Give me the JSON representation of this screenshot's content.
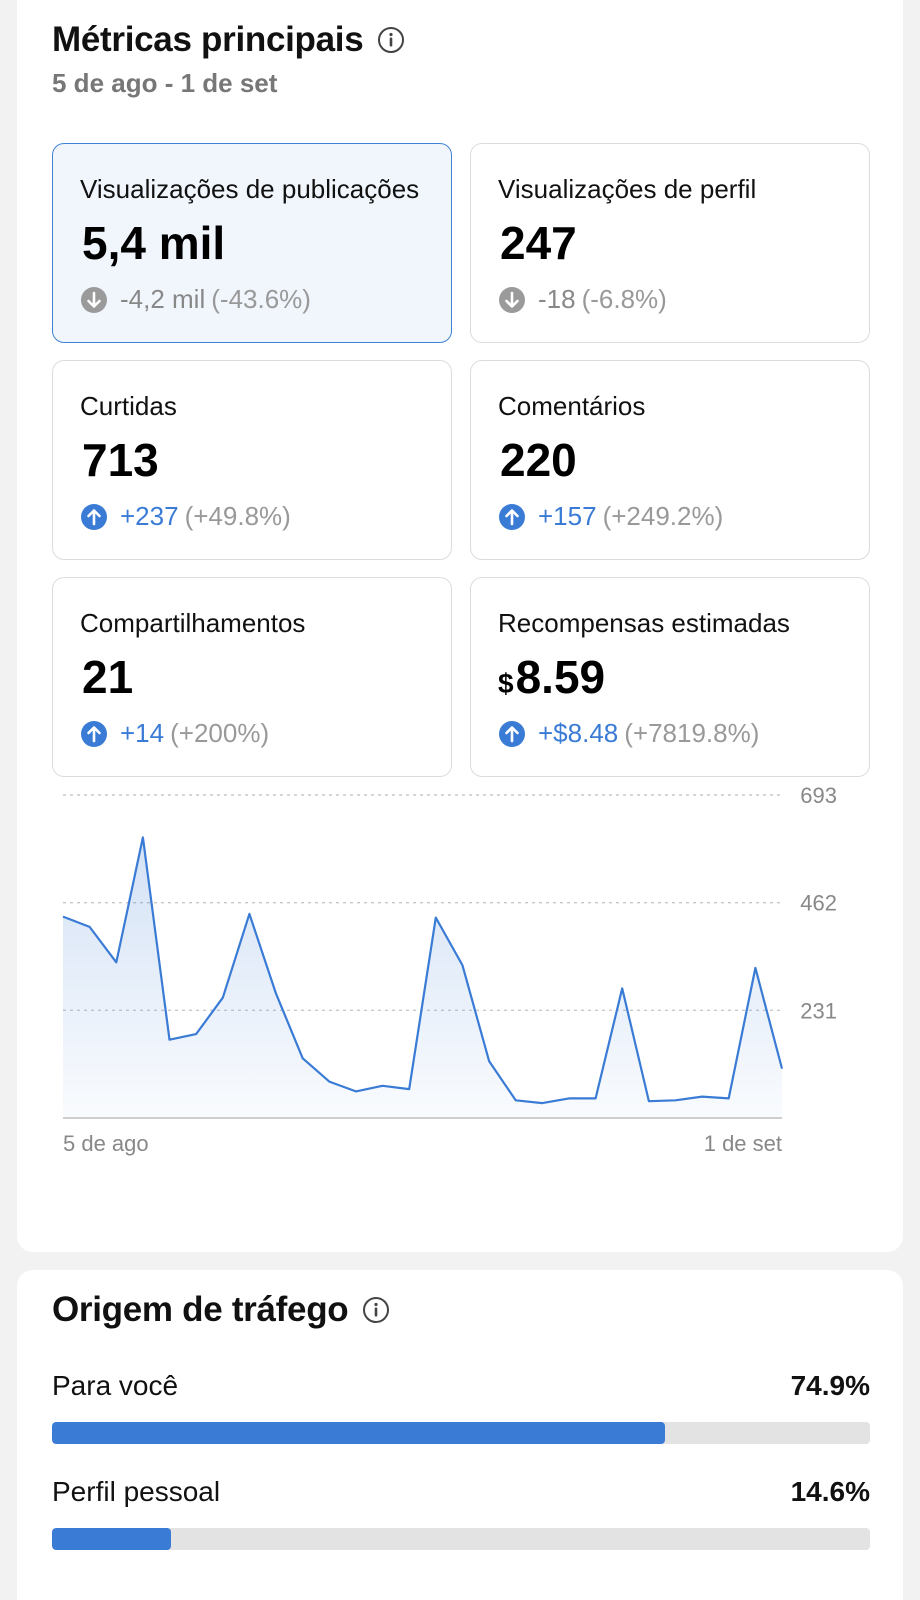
{
  "key_metrics": {
    "title": "Métricas principais",
    "date_range": "5 de ago - 1 de set",
    "cards": [
      {
        "label": "Visualizações de publicações",
        "value": "5,4 mil",
        "currency": "",
        "delta": "-4,2 mil",
        "pct": "(-43.6%)",
        "direction": "down",
        "selected": true
      },
      {
        "label": "Visualizações de perfil",
        "value": "247",
        "currency": "",
        "delta": "-18",
        "pct": "(-6.8%)",
        "direction": "down",
        "selected": false
      },
      {
        "label": "Curtidas",
        "value": "713",
        "currency": "",
        "delta": "+237",
        "pct": "(+49.8%)",
        "direction": "up",
        "selected": false
      },
      {
        "label": "Comentários",
        "value": "220",
        "currency": "",
        "delta": "+157",
        "pct": "(+249.2%)",
        "direction": "up",
        "selected": false
      },
      {
        "label": "Compartilhamentos",
        "value": "21",
        "currency": "",
        "delta": "+14",
        "pct": "(+200%)",
        "direction": "up",
        "selected": false
      },
      {
        "label": "Recompensas estimadas",
        "value": "8.59",
        "currency": "$",
        "delta": "+$8.48",
        "pct": "(+7819.8%)",
        "direction": "up",
        "selected": false
      }
    ]
  },
  "chart_data": {
    "type": "area",
    "x_start_label": "5 de ago",
    "x_end_label": "1 de set",
    "yticks": [
      231,
      462,
      693
    ],
    "ylim": [
      0,
      693
    ],
    "values": [
      432,
      410,
      334,
      602,
      168,
      180,
      258,
      438,
      267,
      128,
      78,
      57,
      69,
      62,
      430,
      328,
      122,
      38,
      32,
      42,
      42,
      278,
      36,
      38,
      46,
      42,
      322,
      106
    ],
    "colors": {
      "line": "#3a7bd5",
      "fill": "#3a7bd5",
      "grid": "#c9c9c9"
    }
  },
  "traffic": {
    "title": "Origem de tráfego",
    "sources": [
      {
        "name": "Para você",
        "pct_label": "74.9%",
        "pct": 74.9
      },
      {
        "name": "Perfil pessoal",
        "pct_label": "14.6%",
        "pct": 14.6
      }
    ]
  },
  "icons": {
    "info": "info-icon",
    "down": "arrow-down-circle-icon",
    "up": "arrow-up-circle-icon"
  }
}
